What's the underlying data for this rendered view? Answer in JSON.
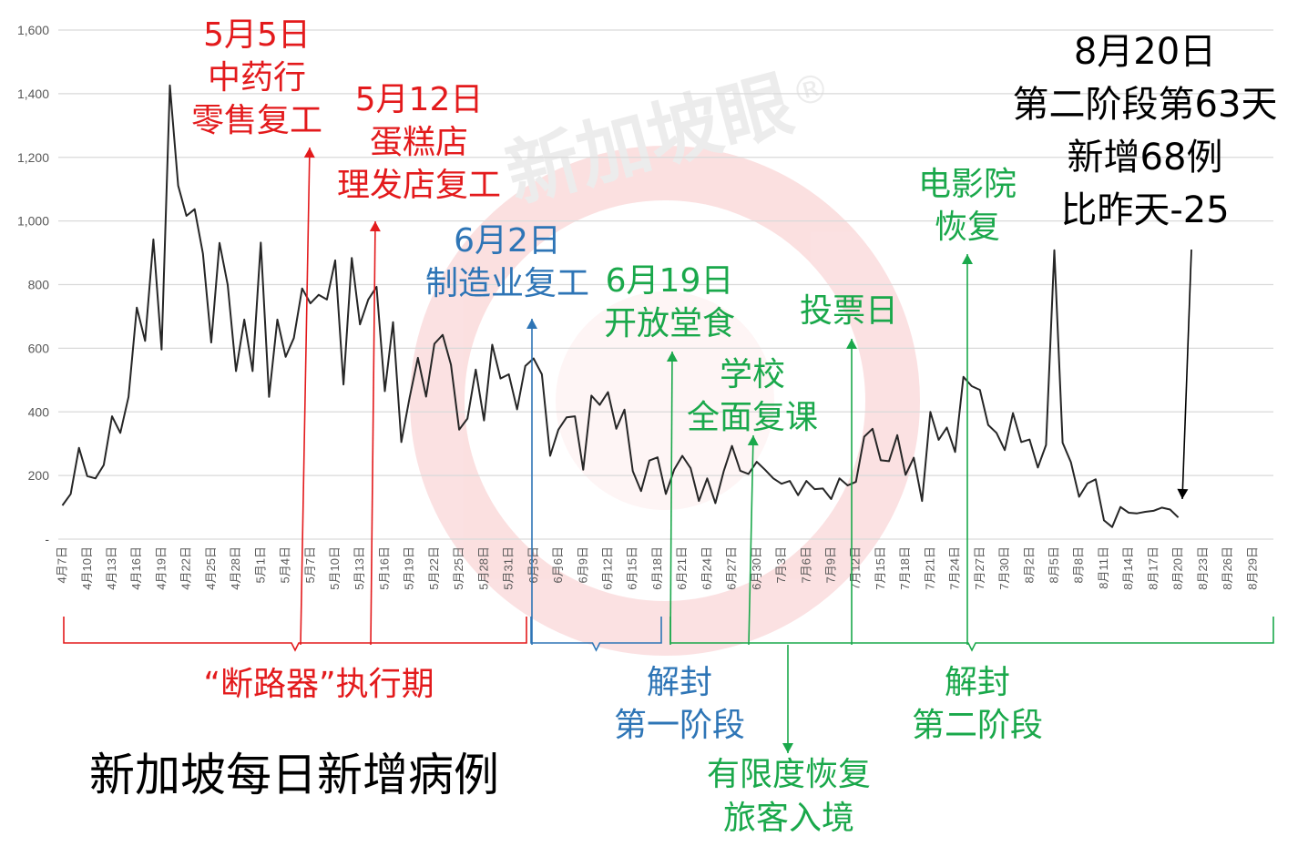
{
  "chart_data": {
    "type": "line",
    "title": "新加坡每日新增病例",
    "x_start": "4月7日",
    "x_end": "8月31日",
    "y_ticks": [
      "-",
      "200",
      "400",
      "600",
      "800",
      "1,000",
      "1,200",
      "1,400",
      "1,600"
    ],
    "ylim": [
      0,
      1600
    ],
    "grid": true,
    "x_tick_labels": [
      "4月7日",
      "4月10日",
      "4月13日",
      "4月16日",
      "4月19日",
      "4月22日",
      "4月25日",
      "4月28日",
      "5月1日",
      "5月4日",
      "5月7日",
      "5月10日",
      "5月13日",
      "5月16日",
      "5月19日",
      "5月22日",
      "5月25日",
      "5月28日",
      "5月31日",
      "6月3日",
      "6月6日",
      "6月9日",
      "6月12日",
      "6月15日",
      "6月18日",
      "6月21日",
      "6月24日",
      "6月27日",
      "6月30日",
      "7月3日",
      "7月6日",
      "7月9日",
      "7月12日",
      "7月15日",
      "7月18日",
      "7月21日",
      "7月24日",
      "7月27日",
      "7月30日",
      "8月2日",
      "8月5日",
      "8月8日",
      "8月11日",
      "8月14日",
      "8月17日",
      "8月20日",
      "8月23日",
      "8月26日",
      "8月29日"
    ],
    "series": [
      {
        "values": [
          106,
          142,
          287,
          198,
          191,
          233,
          386,
          334,
          447,
          728,
          623,
          942,
          596,
          1426,
          1111,
          1016,
          1037,
          897,
          618,
          931,
          799,
          528,
          690,
          528,
          932,
          447,
          690,
          573,
          632,
          788,
          741,
          768,
          753,
          876,
          486,
          884,
          675,
          753,
          793,
          465,
          682,
          305,
          445,
          570,
          448,
          614,
          642,
          548,
          344,
          379,
          533,
          373,
          611,
          505,
          518,
          408,
          544,
          568,
          518,
          262,
          344,
          383,
          386,
          218,
          451,
          422,
          462,
          347,
          407,
          214,
          151,
          247,
          257,
          142,
          218,
          262,
          223,
          120,
          191,
          113,
          213,
          293,
          215,
          205,
          243,
          218,
          191,
          174,
          183,
          138,
          183,
          157,
          159,
          126,
          191,
          169,
          180,
          322,
          347,
          248,
          245,
          327,
          202,
          256,
          120,
          400,
          312,
          351,
          274,
          510,
          481,
          469,
          359,
          334,
          280,
          396,
          305,
          313,
          225,
          296,
          908,
          303,
          242,
          133,
          175,
          188,
          59,
          38,
          101,
          83,
          81,
          86,
          89,
          99,
          93,
          68
        ],
        "color": "#262626"
      }
    ],
    "annotations": {
      "may5": {
        "lines": [
          "5月5日",
          "中药行",
          "零售复工"
        ],
        "color": "#e31a1c"
      },
      "may12": {
        "lines": [
          "5月12日",
          "蛋糕店",
          "理发店复工"
        ],
        "color": "#e31a1c"
      },
      "jun2": {
        "lines": [
          "6月2日",
          "制造业复工"
        ],
        "color": "#2e75b6"
      },
      "jun19": {
        "lines": [
          "6月19日",
          "开放堂食"
        ],
        "color": "#1aa84b"
      },
      "school": {
        "lines": [
          "学校",
          "全面复课"
        ],
        "color": "#1aa84b"
      },
      "vote": {
        "lines": [
          "投票日"
        ],
        "color": "#1aa84b"
      },
      "cinema": {
        "lines": [
          "电影院",
          "恢复"
        ],
        "color": "#1aa84b"
      },
      "travel": {
        "lines": [
          "有限度恢复",
          "旅客入境"
        ],
        "color": "#1aa84b"
      },
      "summary": {
        "lines": [
          "8月20日",
          "第二阶段第63天",
          "新增68例",
          "比昨天-25"
        ],
        "color": "#000000"
      }
    },
    "periods": {
      "breaker": {
        "label": "“断路器”执行期",
        "color": "#e31a1c"
      },
      "phase1": {
        "lines": [
          "解封",
          "第一阶段"
        ],
        "color": "#2e75b6"
      },
      "phase2": {
        "lines": [
          "解封",
          "第二阶段"
        ],
        "color": "#1aa84b"
      }
    },
    "watermark": "新加坡眼®"
  }
}
